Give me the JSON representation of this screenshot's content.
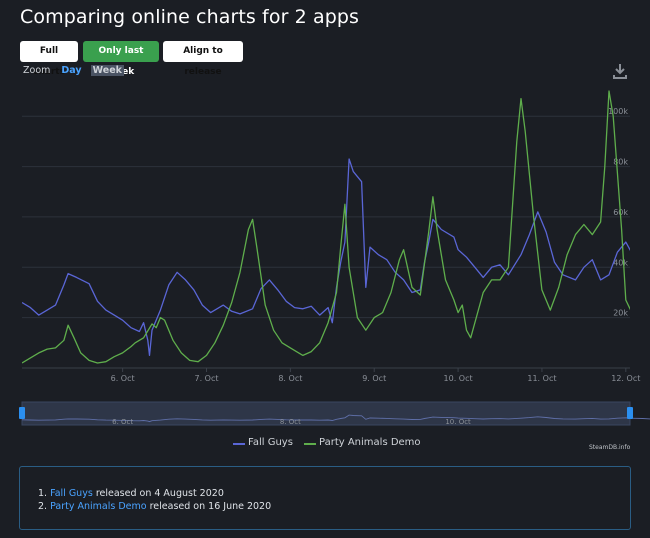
{
  "page": {
    "title": "Comparing online charts for 2 apps",
    "buttons": {
      "full_charts": "Full charts",
      "only_last_week": "Only last week",
      "align_to_release": "Align to release"
    },
    "zoom": {
      "label": "Zoom",
      "day": "Day",
      "week": "Week"
    },
    "credit": "SteamDB.info",
    "releases": [
      {
        "index": "1.",
        "app": "Fall Guys",
        "text": "released on 4 August 2020"
      },
      {
        "index": "2.",
        "app": "Party Animals Demo",
        "text": "released on 16 June 2020"
      }
    ]
  },
  "colors": {
    "fall_guys": "#5a66d6",
    "party_animals": "#5fae4c",
    "grid": "#2c323b",
    "navigator_fill": "#2e3648"
  },
  "chart_data": {
    "type": "line",
    "title": "",
    "x_unit": "days (October 2020)",
    "xlim": [
      4.8,
      12.05
    ],
    "ylim": [
      0,
      112000
    ],
    "y_ticks": [
      20000,
      40000,
      60000,
      80000,
      100000
    ],
    "y_tick_labels": [
      "20k",
      "40k",
      "60k",
      "80k",
      "100k"
    ],
    "x_ticks": [
      6,
      7,
      8,
      9,
      10,
      11,
      12
    ],
    "x_tick_labels": [
      "6. Oct",
      "7. Oct",
      "8. Oct",
      "9. Oct",
      "10. Oct",
      "11. Oct",
      "12. Oct"
    ],
    "navigator_labels": [
      {
        "x": 6,
        "label": "6. Oct"
      },
      {
        "x": 8,
        "label": "8. Oct"
      },
      {
        "x": 10,
        "label": "10. Oct"
      }
    ],
    "legend": [
      "Fall Guys",
      "Party Animals Demo"
    ],
    "series": [
      {
        "name": "Fall Guys",
        "points": [
          [
            4.8,
            26000
          ],
          [
            4.9,
            24000
          ],
          [
            5.0,
            21000
          ],
          [
            5.1,
            23000
          ],
          [
            5.2,
            25000
          ],
          [
            5.3,
            33000
          ],
          [
            5.35,
            37500
          ],
          [
            5.45,
            36000
          ],
          [
            5.6,
            33500
          ],
          [
            5.7,
            26500
          ],
          [
            5.8,
            23000
          ],
          [
            5.9,
            21000
          ],
          [
            6.0,
            19000
          ],
          [
            6.1,
            16000
          ],
          [
            6.2,
            14500
          ],
          [
            6.25,
            18000
          ],
          [
            6.3,
            11000
          ],
          [
            6.32,
            5000
          ],
          [
            6.35,
            15000
          ],
          [
            6.45,
            23000
          ],
          [
            6.55,
            33000
          ],
          [
            6.65,
            38000
          ],
          [
            6.75,
            35000
          ],
          [
            6.85,
            31000
          ],
          [
            6.95,
            25000
          ],
          [
            7.05,
            22000
          ],
          [
            7.2,
            25000
          ],
          [
            7.3,
            22500
          ],
          [
            7.4,
            21500
          ],
          [
            7.55,
            23500
          ],
          [
            7.65,
            31500
          ],
          [
            7.75,
            35000
          ],
          [
            7.85,
            31000
          ],
          [
            7.95,
            26500
          ],
          [
            8.05,
            24000
          ],
          [
            8.15,
            23500
          ],
          [
            8.25,
            24500
          ],
          [
            8.35,
            21000
          ],
          [
            8.45,
            24000
          ],
          [
            8.5,
            18000
          ],
          [
            8.55,
            32000
          ],
          [
            8.6,
            42000
          ],
          [
            8.65,
            50000
          ],
          [
            8.7,
            83000
          ],
          [
            8.75,
            78000
          ],
          [
            8.85,
            74000
          ],
          [
            8.9,
            32000
          ],
          [
            8.95,
            48000
          ],
          [
            9.05,
            45000
          ],
          [
            9.15,
            43000
          ],
          [
            9.25,
            38000
          ],
          [
            9.35,
            35000
          ],
          [
            9.45,
            30000
          ],
          [
            9.55,
            31000
          ],
          [
            9.6,
            42000
          ],
          [
            9.65,
            50000
          ],
          [
            9.7,
            59000
          ],
          [
            9.8,
            55000
          ],
          [
            9.95,
            52000
          ],
          [
            10.0,
            47000
          ],
          [
            10.1,
            44000
          ],
          [
            10.2,
            40000
          ],
          [
            10.3,
            36000
          ],
          [
            10.4,
            40000
          ],
          [
            10.5,
            41000
          ],
          [
            10.6,
            37000
          ],
          [
            10.75,
            45000
          ],
          [
            10.85,
            53000
          ],
          [
            10.95,
            62000
          ],
          [
            11.05,
            54000
          ],
          [
            11.15,
            42000
          ],
          [
            11.25,
            37000
          ],
          [
            11.4,
            35000
          ],
          [
            11.5,
            40000
          ],
          [
            11.6,
            43000
          ],
          [
            11.7,
            35000
          ],
          [
            11.8,
            37000
          ],
          [
            11.9,
            46000
          ],
          [
            12.0,
            50000
          ],
          [
            12.1,
            44000
          ],
          [
            12.2,
            42000
          ],
          [
            12.3,
            36000
          ],
          [
            12.4,
            32000
          ],
          [
            12.5,
            28500
          ],
          [
            12.55,
            28000
          ]
        ]
      },
      {
        "name": "Party Animals Demo",
        "points": [
          [
            4.8,
            2000
          ],
          [
            4.9,
            4000
          ],
          [
            5.0,
            6000
          ],
          [
            5.1,
            7500
          ],
          [
            5.2,
            8000
          ],
          [
            5.3,
            11000
          ],
          [
            5.35,
            17000
          ],
          [
            5.42,
            12000
          ],
          [
            5.5,
            6000
          ],
          [
            5.6,
            3000
          ],
          [
            5.7,
            2000
          ],
          [
            5.8,
            2500
          ],
          [
            5.9,
            4500
          ],
          [
            6.0,
            6000
          ],
          [
            6.1,
            8500
          ],
          [
            6.15,
            10000
          ],
          [
            6.25,
            12000
          ],
          [
            6.35,
            17500
          ],
          [
            6.4,
            16000
          ],
          [
            6.45,
            20000
          ],
          [
            6.5,
            19000
          ],
          [
            6.6,
            11000
          ],
          [
            6.7,
            6000
          ],
          [
            6.8,
            3000
          ],
          [
            6.9,
            2500
          ],
          [
            7.0,
            5000
          ],
          [
            7.1,
            10000
          ],
          [
            7.2,
            17000
          ],
          [
            7.3,
            26000
          ],
          [
            7.4,
            38000
          ],
          [
            7.5,
            55000
          ],
          [
            7.55,
            59000
          ],
          [
            7.6,
            48000
          ],
          [
            7.7,
            25000
          ],
          [
            7.8,
            15000
          ],
          [
            7.9,
            10000
          ],
          [
            8.0,
            8000
          ],
          [
            8.1,
            6000
          ],
          [
            8.15,
            5000
          ],
          [
            8.25,
            6500
          ],
          [
            8.35,
            10000
          ],
          [
            8.45,
            18000
          ],
          [
            8.55,
            30000
          ],
          [
            8.6,
            48000
          ],
          [
            8.65,
            65000
          ],
          [
            8.7,
            40000
          ],
          [
            8.8,
            20000
          ],
          [
            8.9,
            15000
          ],
          [
            9.0,
            20000
          ],
          [
            9.1,
            22000
          ],
          [
            9.2,
            30000
          ],
          [
            9.3,
            43000
          ],
          [
            9.35,
            47000
          ],
          [
            9.45,
            32000
          ],
          [
            9.55,
            29000
          ],
          [
            9.65,
            54000
          ],
          [
            9.7,
            68000
          ],
          [
            9.75,
            55000
          ],
          [
            9.85,
            35000
          ],
          [
            9.95,
            27000
          ],
          [
            10.0,
            22000
          ],
          [
            10.05,
            25000
          ],
          [
            10.1,
            15000
          ],
          [
            10.15,
            12000
          ],
          [
            10.3,
            30000
          ],
          [
            10.4,
            35000
          ],
          [
            10.5,
            35000
          ],
          [
            10.6,
            40000
          ],
          [
            10.65,
            65000
          ],
          [
            10.7,
            90000
          ],
          [
            10.75,
            107000
          ],
          [
            10.8,
            94000
          ],
          [
            10.9,
            60000
          ],
          [
            11.0,
            31000
          ],
          [
            11.1,
            23000
          ],
          [
            11.2,
            32000
          ],
          [
            11.3,
            45000
          ],
          [
            11.4,
            53000
          ],
          [
            11.5,
            57000
          ],
          [
            11.6,
            53000
          ],
          [
            11.7,
            58000
          ],
          [
            11.75,
            80000
          ],
          [
            11.8,
            110000
          ],
          [
            11.85,
            100000
          ],
          [
            11.95,
            55000
          ],
          [
            12.0,
            27000
          ],
          [
            12.1,
            20000
          ],
          [
            12.2,
            17000
          ],
          [
            12.3,
            15000
          ],
          [
            12.4,
            13000
          ],
          [
            12.5,
            17000
          ],
          [
            12.55,
            18000
          ]
        ]
      }
    ]
  }
}
